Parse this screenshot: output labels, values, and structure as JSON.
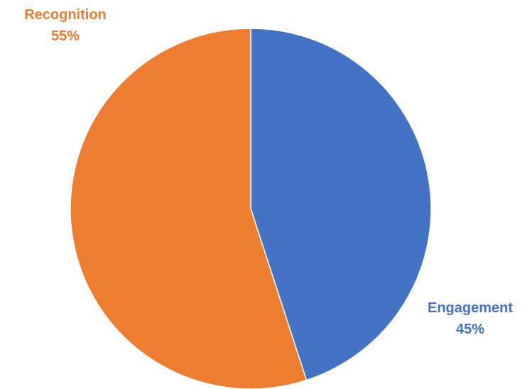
{
  "chart_data": {
    "type": "pie",
    "title": "",
    "start_angle_deg": 0,
    "direction": "clockwise",
    "slices": [
      {
        "label": "Engagement",
        "value": 45,
        "display": "45%",
        "color": "#4472C4"
      },
      {
        "label": "Recognition",
        "value": 55,
        "display": "55%",
        "color": "#ED7D31"
      }
    ]
  }
}
